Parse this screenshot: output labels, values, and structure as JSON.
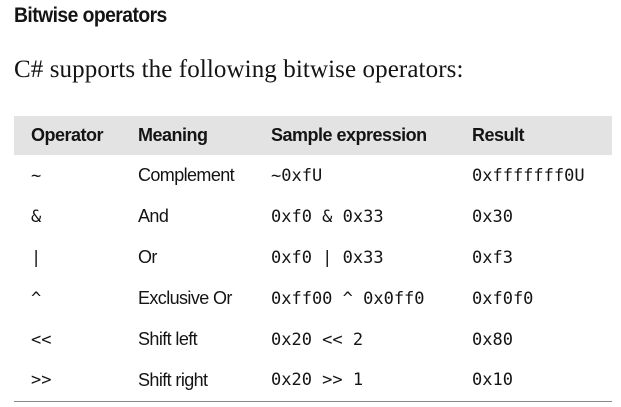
{
  "section": {
    "heading": "Bitwise operators",
    "intro": "C# supports the following bitwise operators:"
  },
  "table": {
    "headers": [
      "Operator",
      "Meaning",
      "Sample expression",
      "Result"
    ],
    "rows": [
      {
        "operator": "~",
        "meaning": "Complement",
        "expression": "~0xfU",
        "result": "0xfffffff0U"
      },
      {
        "operator": "&",
        "meaning": "And",
        "expression": "0xf0 & 0x33",
        "result": "0x30"
      },
      {
        "operator": "|",
        "meaning": "Or",
        "expression": "0xf0 | 0x33",
        "result": "0xf3"
      },
      {
        "operator": "^",
        "meaning": "Exclusive Or",
        "expression": "0xff00 ^ 0x0ff0",
        "result": "0xf0f0"
      },
      {
        "operator": "<<",
        "meaning": "Shift left",
        "expression": "0x20 << 2",
        "result": "0x80"
      },
      {
        "operator": ">>",
        "meaning": "Shift right",
        "expression": "0x20 >> 1",
        "result": "0x10"
      }
    ]
  }
}
